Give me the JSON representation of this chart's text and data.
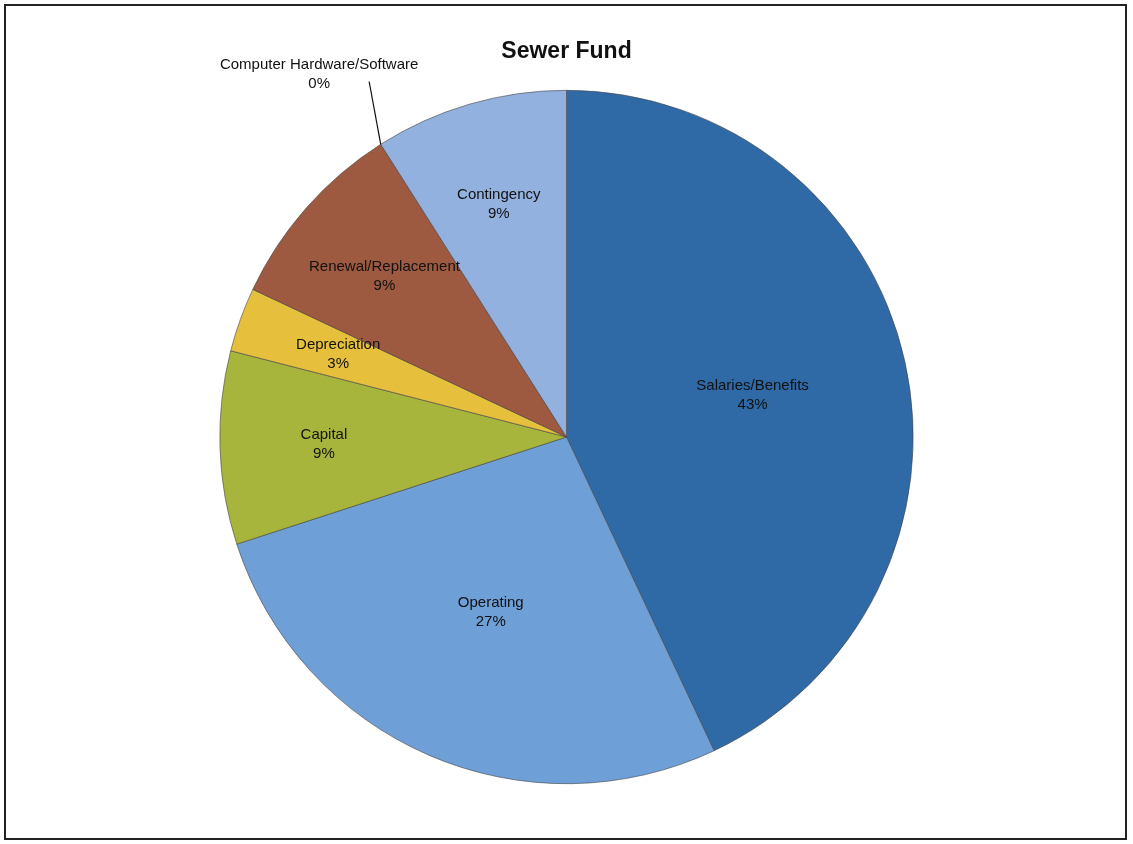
{
  "chart_data": {
    "type": "pie",
    "title": "Sewer Fund",
    "categories": [
      "Salaries/Benefits",
      "Operating",
      "Capital",
      "Depreciation",
      "Renewal/Replacement",
      "Computer Hardware/Software",
      "Contingency"
    ],
    "values": [
      43,
      27,
      9,
      3,
      9,
      0,
      9
    ],
    "value_labels": [
      "43%",
      "27%",
      "9%",
      "3%",
      "9%",
      "0%",
      "9%"
    ],
    "colors": [
      "#2f6aa6",
      "#6e9fd6",
      "#a7b53c",
      "#e6bf3c",
      "#9d5a40",
      "#3a3a3a",
      "#93b1de"
    ],
    "legend": false
  }
}
